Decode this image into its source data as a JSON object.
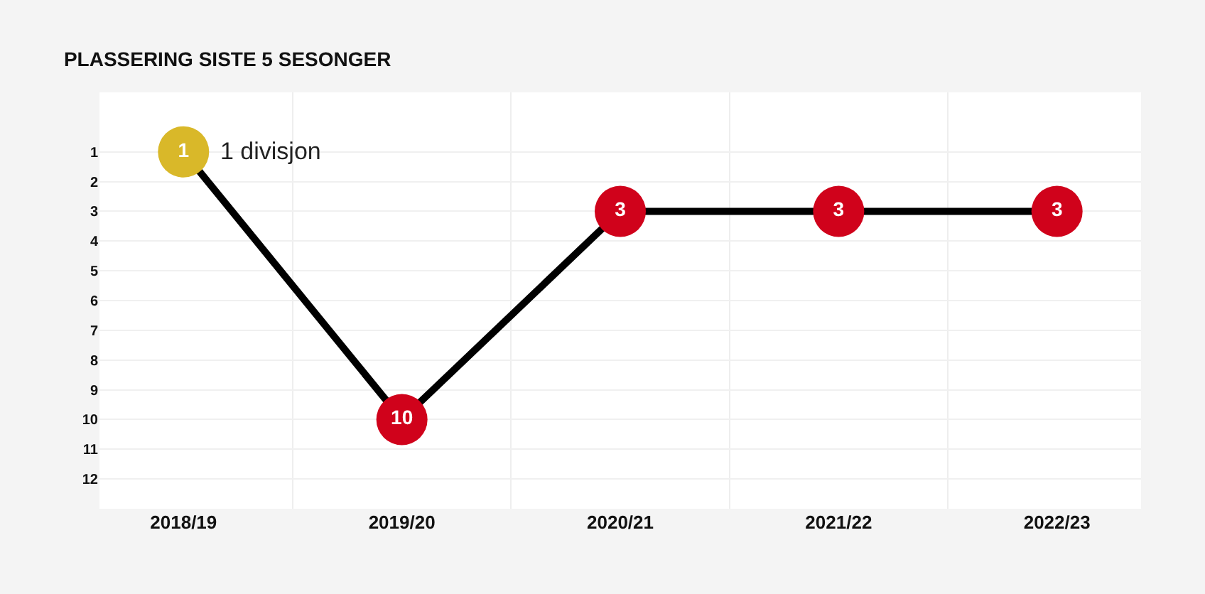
{
  "chart_data": {
    "type": "line",
    "title": "PLASSERING SISTE 5 SESONGER",
    "categories": [
      "2018/19",
      "2019/20",
      "2020/21",
      "2021/22",
      "2022/23"
    ],
    "series": [
      {
        "color": "#000000",
        "values": [
          1,
          10,
          3,
          3,
          3
        ],
        "colors": [
          "#d9b829",
          "#d0021b",
          "#d0021b",
          "#d0021b",
          "#d0021b"
        ]
      }
    ],
    "ylim": [
      13,
      -1
    ],
    "yticks": [
      1,
      2,
      3,
      4,
      5,
      6,
      7,
      8,
      9,
      10,
      11,
      12
    ],
    "grid": true,
    "marker": "circle",
    "line_style": "solid",
    "data_labels": true,
    "annotations": [
      {
        "text": "1 divisjon",
        "x": "2018/19",
        "y": 1
      }
    ]
  }
}
